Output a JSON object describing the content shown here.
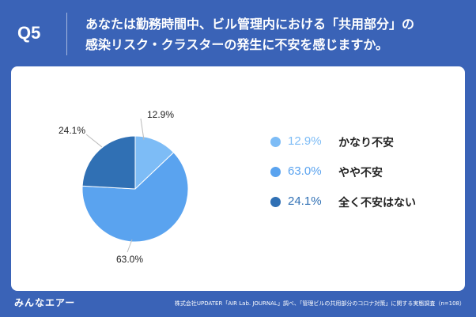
{
  "header": {
    "question_number": "Q5",
    "question_line1": "あなたは勤務時間中、ビル管理内における「共用部分」の",
    "question_line2": "感染リスク・クラスターの発生に不安を感じますか。"
  },
  "footer": {
    "logo": "みんなエアー",
    "source": "株式会社UPDATER「AIR Lab. JOURNAL」調べ、「管理ビルの共用部分のコロナ対策」に関する実態調査（n=108）"
  },
  "chart_data": {
    "type": "pie",
    "unit": "%",
    "slices": [
      {
        "label": "かなり不安",
        "value": 12.9,
        "display": "12.9%",
        "color": "#7dbcf6"
      },
      {
        "label": "やや不安",
        "value": 63.0,
        "display": "63.0%",
        "color": "#5aa3ef"
      },
      {
        "label": "全く不安はない",
        "value": 24.1,
        "display": "24.1%",
        "color": "#3070b4"
      }
    ],
    "start": "12 o'clock, clockwise",
    "legend_position": "right"
  }
}
